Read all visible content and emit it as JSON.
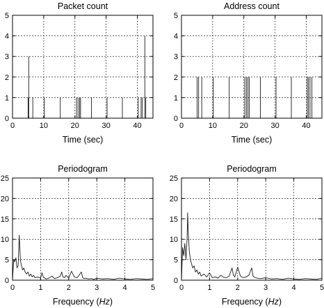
{
  "figure": {
    "background": "#ffffff",
    "line_color": "#1a1a1a"
  },
  "chart_data": [
    {
      "type": "line",
      "title": "Packet count",
      "xlabel": "Time (sec)",
      "xlabel_parts": [
        "Time (sec)"
      ],
      "ylabel": "",
      "xlim": [
        0,
        45
      ],
      "ylim": [
        0,
        5
      ],
      "xticks": [
        0,
        10,
        20,
        30,
        40
      ],
      "yticks": [
        0,
        1,
        2,
        3,
        4,
        5
      ],
      "grid": true,
      "series": [
        {
          "style": "impulse",
          "x": [
            5.0,
            5.2,
            6.5,
            10.2,
            15.3,
            20.5,
            21.0,
            21.5,
            21.8,
            25.3,
            30.3,
            35.2,
            40.3,
            41.2,
            41.6,
            42.4,
            42.7
          ],
          "values": [
            1,
            3,
            1,
            1,
            1,
            1,
            1,
            1,
            1,
            1,
            1,
            1,
            1,
            1,
            1,
            4,
            1
          ]
        }
      ]
    },
    {
      "type": "line",
      "title": "Address count",
      "xlabel": "Time (sec)",
      "xlabel_parts": [
        "Time (sec)"
      ],
      "ylabel": "",
      "xlim": [
        0,
        45
      ],
      "ylim": [
        0,
        5
      ],
      "xticks": [
        0,
        10,
        20,
        30,
        40
      ],
      "yticks": [
        0,
        1,
        2,
        3,
        4,
        5
      ],
      "grid": true,
      "series": [
        {
          "style": "impulse",
          "x": [
            5.0,
            5.5,
            6.5,
            10.2,
            15.3,
            20.3,
            20.8,
            21.3,
            21.7,
            25.3,
            30.3,
            35.2,
            40.3,
            40.7,
            41.2,
            41.8
          ],
          "values": [
            2,
            2,
            2,
            2,
            2,
            2,
            2,
            2,
            2,
            2,
            2,
            2,
            2,
            2,
            2,
            2
          ]
        }
      ]
    },
    {
      "type": "line",
      "title": "Periodogram",
      "xlabel": "Frequency (Hz)",
      "xlabel_parts": [
        "Frequency (",
        "Hz",
        ")"
      ],
      "ylabel": "",
      "xlim": [
        0,
        5
      ],
      "ylim": [
        0,
        25
      ],
      "xticks": [
        0,
        1,
        2,
        3,
        4,
        5
      ],
      "yticks": [
        0,
        5,
        10,
        15,
        20,
        25
      ],
      "grid": true,
      "series": [
        {
          "style": "line",
          "x": [
            0,
            0.04,
            0.08,
            0.12,
            0.16,
            0.2,
            0.24,
            0.28,
            0.32,
            0.36,
            0.4,
            0.45,
            0.5,
            0.55,
            0.6,
            0.65,
            0.7,
            0.75,
            0.8,
            0.9,
            1.0,
            1.05,
            1.1,
            1.15,
            1.2,
            1.3,
            1.4,
            1.5,
            1.6,
            1.7,
            1.75,
            1.8,
            1.85,
            1.9,
            2.0,
            2.1,
            2.2,
            2.3,
            2.4,
            2.45,
            2.5,
            2.55,
            2.6,
            2.7,
            2.8,
            2.9,
            3.0,
            3.2,
            3.4,
            3.6,
            3.8,
            4.0,
            4.2,
            4.4,
            4.6,
            4.8,
            5.0
          ],
          "values": [
            0,
            5,
            4.5,
            5.5,
            3,
            3.5,
            11,
            5,
            3.5,
            2.5,
            3,
            2,
            1.5,
            2,
            1,
            1.5,
            0.8,
            1.2,
            0.6,
            0.8,
            0.5,
            1.8,
            0.7,
            0.5,
            0.3,
            0.5,
            1.0,
            0.4,
            0.6,
            1.0,
            2.0,
            0.8,
            0.6,
            1.2,
            0.5,
            2.2,
            0.8,
            0.6,
            1.5,
            2.0,
            0.6,
            0.4,
            0.5,
            0.3,
            0.4,
            0.2,
            0.5,
            0.3,
            0.4,
            0.2,
            0.5,
            0.3,
            0.2,
            0.4,
            0.3,
            0.2,
            0.4
          ]
        }
      ]
    },
    {
      "type": "line",
      "title": "Periodogram",
      "xlabel": "Frequency (Hz)",
      "xlabel_parts": [
        "Frequency (",
        "Hz",
        ")"
      ],
      "ylabel": "",
      "xlim": [
        0,
        5
      ],
      "ylim": [
        0,
        25
      ],
      "xticks": [
        0,
        1,
        2,
        3,
        4,
        5
      ],
      "yticks": [
        0,
        5,
        10,
        15,
        20,
        25
      ],
      "grid": true,
      "series": [
        {
          "style": "line",
          "x": [
            0,
            0.04,
            0.08,
            0.12,
            0.16,
            0.2,
            0.22,
            0.24,
            0.28,
            0.32,
            0.36,
            0.4,
            0.45,
            0.5,
            0.55,
            0.6,
            0.65,
            0.7,
            0.8,
            0.9,
            1.0,
            1.1,
            1.2,
            1.3,
            1.4,
            1.5,
            1.6,
            1.7,
            1.8,
            1.85,
            1.9,
            2.0,
            2.1,
            2.2,
            2.3,
            2.4,
            2.5,
            2.55,
            2.6,
            2.7,
            2.8,
            3.0,
            3.2,
            3.4,
            3.6,
            3.8,
            4.0,
            4.2,
            4.4,
            4.6,
            4.8,
            5.0
          ],
          "values": [
            0,
            8,
            6,
            9,
            5,
            10,
            16.5,
            12,
            7,
            5,
            4,
            3,
            3.5,
            2,
            2.5,
            1.5,
            2,
            1,
            1.5,
            0.8,
            1.8,
            0.6,
            0.8,
            0.5,
            1.2,
            0.7,
            0.6,
            1.0,
            3.0,
            1.2,
            0.8,
            3.2,
            1.0,
            0.6,
            0.8,
            1.2,
            3.0,
            1.0,
            0.7,
            0.5,
            0.4,
            0.6,
            0.3,
            0.4,
            0.2,
            0.5,
            0.3,
            0.2,
            0.4,
            0.3,
            0.2,
            0.5
          ]
        }
      ]
    }
  ]
}
